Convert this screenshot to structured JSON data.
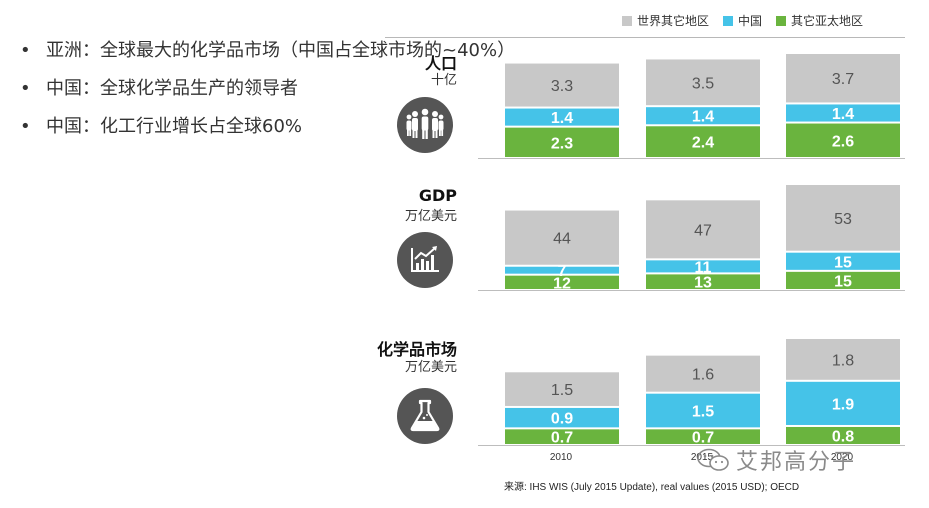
{
  "bullets": [
    {
      "marker": "•",
      "text": "亚洲：全球最大的化学品市场（中国占全球市场的~40%）"
    },
    {
      "marker": "•",
      "text": "中国：全球化学品生产的领导者"
    },
    {
      "marker": "•",
      "text": "中国：化工行业增长占全球60%"
    }
  ],
  "legend": [
    {
      "label": "世界其它地区",
      "color": "#c8c8c8"
    },
    {
      "label": "中国",
      "color": "#45c3e8"
    },
    {
      "label": "其它亚太地区",
      "color": "#6ab43e"
    }
  ],
  "panels": [
    {
      "title": "人口",
      "unit": "十亿",
      "icon": "people-icon"
    },
    {
      "title": "GDP",
      "unit": "万亿美元",
      "icon": "growth-chart-icon"
    },
    {
      "title": "化学品市场",
      "unit": "万亿美元",
      "icon": "flask-icon"
    }
  ],
  "source": "来源: IHS WIS (July 2015 Update), real values (2015 USD); OECD",
  "watermark": "艾邦高分子",
  "chart_data": [
    {
      "type": "bar",
      "stacked": true,
      "title": "人口",
      "ylabel": "十亿",
      "categories": [
        "2010",
        "2015",
        "2020"
      ],
      "series": [
        {
          "name": "其它亚太地区",
          "color": "#6ab43e",
          "values": [
            2.3,
            2.4,
            2.6
          ]
        },
        {
          "name": "中国",
          "color": "#45c3e8",
          "values": [
            1.4,
            1.4,
            1.4
          ]
        },
        {
          "name": "世界其它地区",
          "color": "#c8c8c8",
          "values": [
            3.3,
            3.5,
            3.7
          ]
        }
      ]
    },
    {
      "type": "bar",
      "stacked": true,
      "title": "GDP",
      "ylabel": "万亿美元",
      "categories": [
        "2010",
        "2015",
        "2020"
      ],
      "series": [
        {
          "name": "其它亚太地区",
          "color": "#6ab43e",
          "values": [
            12,
            13,
            15
          ]
        },
        {
          "name": "中国",
          "color": "#45c3e8",
          "values": [
            7,
            11,
            15
          ]
        },
        {
          "name": "世界其它地区",
          "color": "#c8c8c8",
          "values": [
            44,
            47,
            53
          ]
        }
      ]
    },
    {
      "type": "bar",
      "stacked": true,
      "title": "化学品市场",
      "ylabel": "万亿美元",
      "categories": [
        "2010",
        "2015",
        "2020"
      ],
      "series": [
        {
          "name": "其它亚太地区",
          "color": "#6ab43e",
          "values": [
            0.7,
            0.7,
            0.8
          ]
        },
        {
          "name": "中国",
          "color": "#45c3e8",
          "values": [
            0.9,
            1.5,
            1.9
          ]
        },
        {
          "name": "世界其它地区",
          "color": "#c8c8c8",
          "values": [
            1.5,
            1.6,
            1.8
          ]
        }
      ]
    }
  ]
}
